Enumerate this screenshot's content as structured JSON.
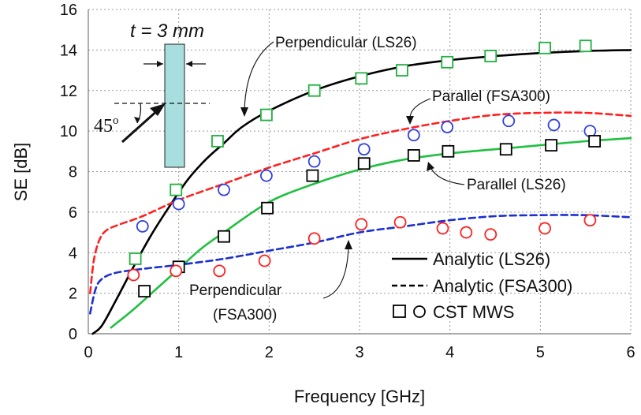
{
  "chart_data": {
    "type": "line",
    "title": "",
    "xlabel": "Frequency [GHz]",
    "ylabel": "SE [dB]",
    "xlim": [
      0,
      6
    ],
    "ylim": [
      0,
      16
    ],
    "xticks": [
      "0",
      "1",
      "2",
      "3",
      "4",
      "5",
      "6"
    ],
    "yticks": [
      "0",
      "2",
      "4",
      "6",
      "8",
      "10",
      "12",
      "14",
      "16"
    ],
    "grid": true,
    "legend_position": "bottom-right",
    "colors": {
      "perp_ls26": "#000000",
      "par_fsa300": "#ff2020",
      "par_ls26": "#20c040",
      "perp_fsa300": "#1a2fd0",
      "sq_green": "#20b040",
      "circ_blue": "#3040e0",
      "sq_black": "#000000",
      "circ_red": "#ff2020",
      "slab": "#a8dede"
    },
    "series": [
      {
        "name": "Perpendicular (LS26) analytic",
        "style": "solid",
        "color_key": "perp_ls26",
        "x": [
          0.05,
          0.15,
          0.3,
          0.5,
          0.7,
          0.9,
          1.1,
          1.3,
          1.5,
          1.7,
          2.0,
          2.5,
          3.0,
          3.5,
          4.0,
          4.5,
          5.0,
          5.5,
          6.0
        ],
        "y": [
          0.0,
          0.4,
          1.6,
          3.3,
          4.9,
          6.3,
          7.6,
          8.6,
          9.4,
          10.2,
          11.0,
          12.0,
          12.7,
          13.2,
          13.5,
          13.7,
          13.85,
          13.95,
          14.0
        ]
      },
      {
        "name": "Parallel (FSA300) analytic",
        "style": "dashed",
        "color_key": "par_fsa300",
        "x": [
          0.02,
          0.06,
          0.12,
          0.2,
          0.35,
          0.6,
          1.0,
          1.5,
          2.0,
          2.5,
          3.0,
          3.5,
          4.0,
          4.5,
          5.0,
          5.5,
          6.0
        ],
        "y": [
          2.0,
          3.6,
          4.6,
          5.1,
          5.4,
          5.8,
          6.6,
          7.4,
          8.2,
          8.9,
          9.6,
          10.1,
          10.5,
          10.8,
          10.9,
          10.9,
          10.75
        ]
      },
      {
        "name": "Parallel (LS26) analytic",
        "style": "solid",
        "color_key": "par_ls26",
        "x": [
          0.25,
          0.5,
          0.75,
          1.0,
          1.25,
          1.5,
          2.0,
          2.5,
          3.0,
          3.5,
          4.0,
          4.5,
          5.0,
          5.5,
          6.0
        ],
        "y": [
          0.3,
          1.2,
          2.2,
          3.2,
          4.2,
          5.0,
          6.5,
          7.4,
          8.1,
          8.6,
          8.9,
          9.1,
          9.3,
          9.5,
          9.65
        ]
      },
      {
        "name": "Perpendicular (FSA300) analytic",
        "style": "dashed",
        "color_key": "perp_fsa300",
        "x": [
          0.02,
          0.08,
          0.15,
          0.3,
          0.6,
          1.0,
          1.5,
          2.0,
          2.5,
          3.0,
          3.5,
          4.0,
          4.5,
          5.0,
          5.5,
          6.0
        ],
        "y": [
          1.0,
          2.2,
          2.7,
          3.0,
          3.2,
          3.4,
          3.7,
          4.1,
          4.5,
          5.0,
          5.3,
          5.6,
          5.8,
          5.85,
          5.85,
          5.75
        ]
      }
    ],
    "markers": [
      {
        "name": "CST Perpendicular (LS26)",
        "shape": "square",
        "color_key": "sq_green",
        "x": [
          0.52,
          0.97,
          1.43,
          1.97,
          2.5,
          3.02,
          3.47,
          3.97,
          4.45,
          5.05,
          5.5
        ],
        "y": [
          3.7,
          7.1,
          9.5,
          10.8,
          12.0,
          12.6,
          13.0,
          13.4,
          13.7,
          14.1,
          14.2
        ]
      },
      {
        "name": "CST Parallel (FSA300)",
        "shape": "circle",
        "color_key": "circ_blue",
        "x": [
          0.6,
          1.0,
          1.5,
          1.97,
          2.5,
          3.05,
          3.6,
          3.97,
          4.65,
          5.15,
          5.55
        ],
        "y": [
          5.3,
          6.4,
          7.1,
          7.8,
          8.5,
          9.1,
          9.8,
          10.2,
          10.5,
          10.3,
          10.0
        ]
      },
      {
        "name": "CST Parallel (LS26)",
        "shape": "square",
        "color_key": "sq_black",
        "x": [
          0.62,
          1.0,
          1.5,
          1.98,
          2.48,
          3.05,
          3.6,
          3.98,
          4.62,
          5.12,
          5.6
        ],
        "y": [
          2.1,
          3.3,
          4.8,
          6.2,
          7.8,
          8.4,
          8.8,
          9.0,
          9.1,
          9.3,
          9.5
        ]
      },
      {
        "name": "CST Perpendicular (FSA300)",
        "shape": "circle",
        "color_key": "circ_red",
        "x": [
          0.5,
          0.97,
          1.45,
          1.95,
          2.5,
          3.02,
          3.45,
          3.92,
          4.18,
          4.45,
          5.05,
          5.55
        ],
        "y": [
          2.9,
          3.1,
          3.1,
          3.6,
          4.7,
          5.4,
          5.5,
          5.2,
          5.0,
          4.9,
          5.2,
          5.6
        ]
      }
    ],
    "annotations": {
      "perp_ls26": "Perpendicular (LS26)",
      "par_fsa300": "Parallel  (FSA300)",
      "par_ls26": "Parallel (LS26)",
      "perp_fsa300_line1": "Perpendicular",
      "perp_fsa300_line2": "(FSA300)",
      "thickness_t": "t",
      "thickness_eq": " = 3 mm",
      "angle": "45",
      "angle_unit": "o"
    },
    "legend": {
      "solid": "Analytic (LS26)",
      "dashed": "Analytic (FSA300)",
      "markers": "CST MWS"
    }
  }
}
